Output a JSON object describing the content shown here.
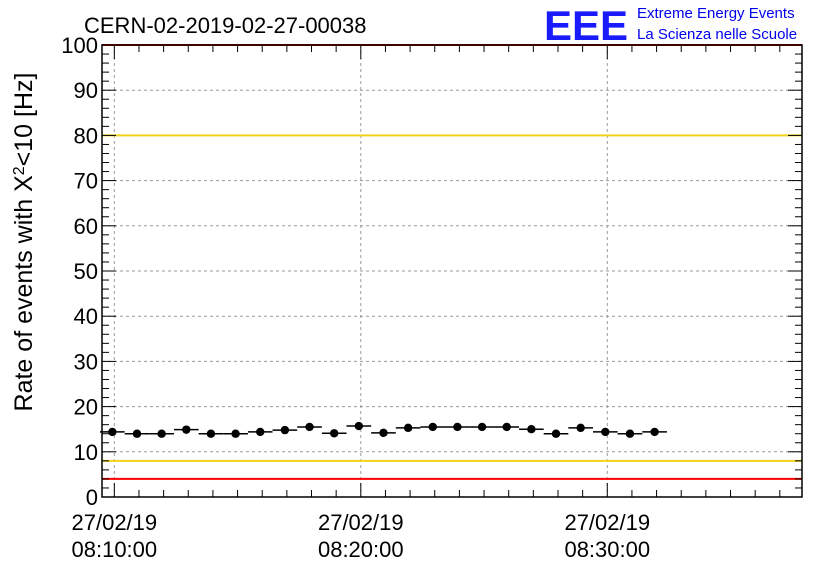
{
  "chart_data": {
    "type": "scatter",
    "title": "CERN-02-2019-02-27-00038",
    "ylabel_main": "Rate of events with X",
    "ylabel_sup": "2",
    "ylabel_tail": "<10 [Hz]",
    "ylim": [
      0,
      100
    ],
    "y_ticks": [
      0,
      10,
      20,
      30,
      40,
      50,
      60,
      70,
      80,
      90,
      100
    ],
    "xlim_minutes": [
      9.5,
      37.9
    ],
    "x_ticks": [
      {
        "minute": 10,
        "date": "27/02/19",
        "time": "08:10:00"
      },
      {
        "minute": 20,
        "date": "27/02/19",
        "time": "08:20:00"
      },
      {
        "minute": 30,
        "date": "27/02/19",
        "time": "08:30:00"
      }
    ],
    "grid": true,
    "bin_width_minutes": 1,
    "points": [
      {
        "minute": 9.92,
        "y": 14.4
      },
      {
        "minute": 10.92,
        "y": 14.0
      },
      {
        "minute": 11.92,
        "y": 14.0
      },
      {
        "minute": 12.92,
        "y": 14.9
      },
      {
        "minute": 13.92,
        "y": 14.0
      },
      {
        "minute": 14.92,
        "y": 14.0
      },
      {
        "minute": 15.92,
        "y": 14.4
      },
      {
        "minute": 16.92,
        "y": 14.8
      },
      {
        "minute": 17.92,
        "y": 15.5
      },
      {
        "minute": 18.92,
        "y": 14.1
      },
      {
        "minute": 19.92,
        "y": 15.7
      },
      {
        "minute": 20.92,
        "y": 14.2
      },
      {
        "minute": 21.92,
        "y": 15.3
      },
      {
        "minute": 22.92,
        "y": 15.5
      },
      {
        "minute": 23.92,
        "y": 15.5
      },
      {
        "minute": 24.92,
        "y": 15.5
      },
      {
        "minute": 25.92,
        "y": 15.5
      },
      {
        "minute": 26.92,
        "y": 15.0
      },
      {
        "minute": 27.92,
        "y": 14.0
      },
      {
        "minute": 28.92,
        "y": 15.3
      },
      {
        "minute": 29.92,
        "y": 14.4
      },
      {
        "minute": 30.92,
        "y": 14.0
      },
      {
        "minute": 31.92,
        "y": 14.4
      }
    ],
    "reference_lines": [
      {
        "y": 80,
        "color": "#f2d21b"
      },
      {
        "y": 8,
        "color": "#f2d21b"
      },
      {
        "y": 100,
        "color": "#ff0000"
      },
      {
        "y": 4,
        "color": "#ff0000"
      }
    ],
    "marker_color": "#000000"
  },
  "logo": {
    "mark": "EEE",
    "line1": "Extreme Energy Events",
    "line2": "La Scienza nelle Scuole",
    "color": "#0000ee"
  }
}
